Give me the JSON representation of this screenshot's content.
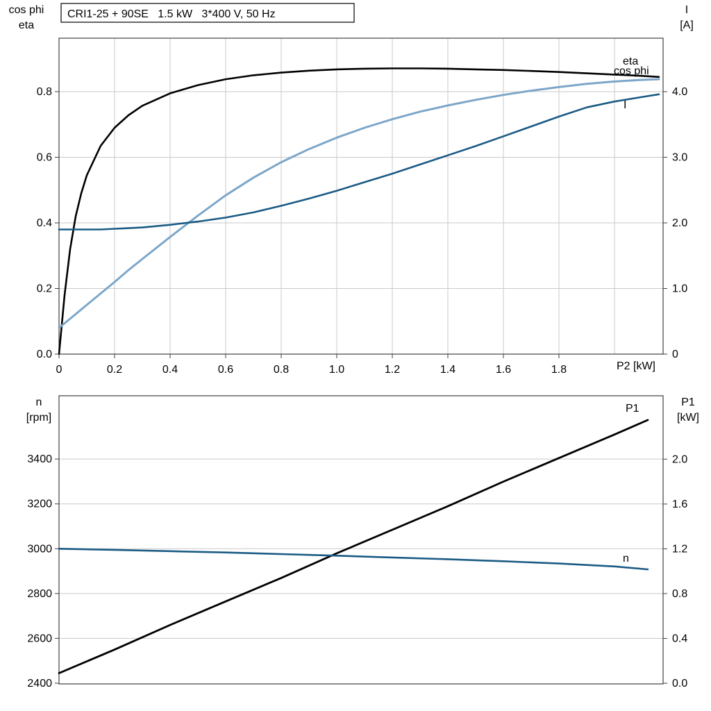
{
  "title": "CRI1-25 + 90SE   1.5 kW   3*400 V, 50 Hz",
  "colors": {
    "curve_black": "#000000",
    "cos_phi_blue": "#7ca6c9",
    "dark_blue": "#1a5a84",
    "grid": "#c9c9c9",
    "border": "#3f3f3f"
  },
  "chart_data": [
    {
      "type": "line",
      "title": "CRI1-25 + 90SE   1.5 kW   3*400 V, 50 Hz",
      "x_axis": {
        "label": "P2 [kW]",
        "min": 0,
        "max": 2.175,
        "gridlines": [
          0.2,
          0.4,
          0.6,
          0.8,
          1.0,
          1.2,
          1.4,
          1.6,
          1.8,
          2.0
        ],
        "tick_values": [
          0,
          0.2,
          0.4,
          0.6,
          0.8,
          1.0,
          1.2,
          1.4,
          1.6,
          1.8
        ],
        "tick_labels": [
          "0",
          "0.2",
          "0.4",
          "0.6",
          "0.8",
          "1.0",
          "1.2",
          "1.4",
          "1.6",
          "1.8"
        ]
      },
      "y_left": {
        "label_lines": [
          "cos phi",
          "eta"
        ],
        "min": 0,
        "max": 0.963,
        "gridlines": [
          0.2,
          0.4,
          0.6,
          0.8
        ],
        "tick_values": [
          0,
          0.2,
          0.4,
          0.6,
          0.8
        ],
        "tick_labels": [
          "0.0",
          "0.2",
          "0.4",
          "0.6",
          "0.8"
        ]
      },
      "y_right": {
        "label_lines": [
          "I",
          "[A]"
        ],
        "min": 0,
        "max": 4.815,
        "tick_values": [
          0,
          1,
          2,
          3,
          4
        ],
        "tick_labels": [
          "0",
          "1.0",
          "2.0",
          "3.0",
          "4.0"
        ]
      },
      "series": [
        {
          "name": "eta",
          "label": "eta",
          "axis": "left",
          "color": "#000000",
          "width": 2.6,
          "x": [
            0,
            0.02,
            0.04,
            0.06,
            0.08,
            0.1,
            0.15,
            0.2,
            0.25,
            0.3,
            0.4,
            0.5,
            0.6,
            0.7,
            0.8,
            0.9,
            1.0,
            1.1,
            1.2,
            1.3,
            1.4,
            1.5,
            1.6,
            1.7,
            1.8,
            1.9,
            2.0,
            2.1,
            2.16
          ],
          "y": [
            0,
            0.18,
            0.32,
            0.42,
            0.49,
            0.545,
            0.635,
            0.69,
            0.728,
            0.757,
            0.795,
            0.82,
            0.838,
            0.85,
            0.858,
            0.864,
            0.868,
            0.87,
            0.871,
            0.871,
            0.87,
            0.868,
            0.866,
            0.863,
            0.86,
            0.856,
            0.852,
            0.848,
            0.845
          ]
        },
        {
          "name": "cos-phi",
          "label": "cos phi",
          "axis": "left",
          "color": "#7ca6c9",
          "width": 3,
          "x": [
            0,
            0.02,
            0.04,
            0.06,
            0.08,
            0.1,
            0.15,
            0.2,
            0.25,
            0.3,
            0.4,
            0.5,
            0.6,
            0.7,
            0.8,
            0.9,
            1.0,
            1.1,
            1.2,
            1.3,
            1.4,
            1.5,
            1.6,
            1.7,
            1.8,
            1.9,
            2.0,
            2.1,
            2.16
          ],
          "y": [
            0.08,
            0.094,
            0.108,
            0.122,
            0.136,
            0.15,
            0.185,
            0.22,
            0.256,
            0.29,
            0.357,
            0.422,
            0.484,
            0.538,
            0.585,
            0.625,
            0.66,
            0.69,
            0.716,
            0.739,
            0.758,
            0.775,
            0.79,
            0.803,
            0.814,
            0.824,
            0.831,
            0.836,
            0.838
          ]
        },
        {
          "name": "current",
          "label": "I",
          "axis": "right",
          "color": "#1a5a84",
          "width": 2.6,
          "x": [
            0,
            0.02,
            0.04,
            0.06,
            0.08,
            0.1,
            0.15,
            0.2,
            0.25,
            0.3,
            0.4,
            0.5,
            0.6,
            0.7,
            0.8,
            0.9,
            1.0,
            1.1,
            1.2,
            1.3,
            1.4,
            1.5,
            1.6,
            1.7,
            1.8,
            1.9,
            2.0,
            2.1,
            2.16
          ],
          "y": [
            1.9,
            1.9,
            1.9,
            1.9,
            1.9,
            1.9,
            1.9,
            1.91,
            1.92,
            1.93,
            1.97,
            2.02,
            2.08,
            2.16,
            2.26,
            2.37,
            2.49,
            2.62,
            2.75,
            2.89,
            3.03,
            3.17,
            3.32,
            3.47,
            3.62,
            3.76,
            3.85,
            3.92,
            3.96
          ]
        }
      ]
    },
    {
      "type": "line",
      "title": "",
      "x_axis": {
        "label": "",
        "min": 0,
        "max": 2.175,
        "gridlines": [],
        "tick_values": [],
        "tick_labels": []
      },
      "y_left": {
        "label_lines": [
          "n",
          "[rpm]"
        ],
        "min": 2397,
        "max": 3682,
        "gridlines": [
          2600,
          2800,
          3000,
          3200,
          3400
        ],
        "tick_values": [
          2400,
          2600,
          2800,
          3000,
          3200,
          3400
        ],
        "tick_labels": [
          "2400",
          "2600",
          "2800",
          "3000",
          "3200",
          "3400"
        ]
      },
      "y_right": {
        "label_lines": [
          "P1",
          "[kW]"
        ],
        "min": -0.006,
        "max": 2.566,
        "tick_values": [
          0,
          0.4,
          0.8,
          1.2,
          1.6,
          2.0
        ],
        "tick_labels": [
          "0.0",
          "0.4",
          "0.8",
          "1.2",
          "1.6",
          "2.0"
        ]
      },
      "series": [
        {
          "name": "p1",
          "label": "P1",
          "axis": "right",
          "color": "#000000",
          "width": 2.8,
          "x": [
            0,
            0.2,
            0.4,
            0.6,
            0.8,
            1.0,
            1.2,
            1.4,
            1.6,
            1.8,
            2.0,
            2.12
          ],
          "y": [
            0.09,
            0.3,
            0.52,
            0.73,
            0.94,
            1.16,
            1.37,
            1.58,
            1.8,
            2.01,
            2.22,
            2.35
          ]
        },
        {
          "name": "speed",
          "label": "n",
          "axis": "left",
          "color": "#1a5a84",
          "width": 2.6,
          "x": [
            0,
            0.2,
            0.4,
            0.6,
            0.8,
            1.0,
            1.2,
            1.4,
            1.6,
            1.8,
            2.0,
            2.12
          ],
          "y": [
            3000,
            2995,
            2989,
            2983,
            2976,
            2969,
            2961,
            2953,
            2944,
            2934,
            2921,
            2908
          ]
        }
      ]
    }
  ]
}
